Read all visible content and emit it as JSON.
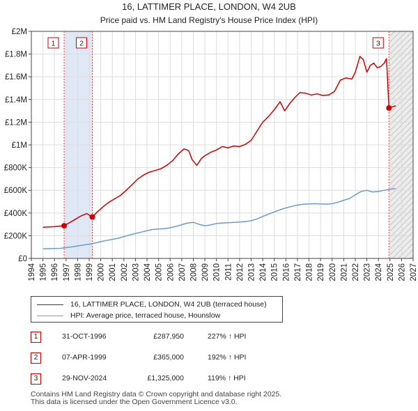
{
  "chart_data": {
    "type": "line",
    "title": "16, LATTIMER PLACE, LONDON, W4 2UB",
    "subtitle": "Price paid vs. HM Land Registry's House Price Index (HPI)",
    "xlim": [
      1994,
      2027
    ],
    "ylim": [
      0,
      2000000
    ],
    "x_ticks": [
      "1994",
      "1995",
      "1996",
      "1997",
      "1998",
      "1999",
      "2000",
      "2001",
      "2002",
      "2003",
      "2004",
      "2005",
      "2006",
      "2007",
      "2008",
      "2009",
      "2010",
      "2011",
      "2012",
      "2013",
      "2014",
      "2015",
      "2016",
      "2017",
      "2018",
      "2019",
      "2020",
      "2021",
      "2022",
      "2023",
      "2024",
      "2025",
      "2026",
      "2027"
    ],
    "y_ticks": [
      {
        "value": 0,
        "label": "£0"
      },
      {
        "value": 200000,
        "label": "£200K"
      },
      {
        "value": 400000,
        "label": "£400K"
      },
      {
        "value": 600000,
        "label": "£600K"
      },
      {
        "value": 800000,
        "label": "£800K"
      },
      {
        "value": 1000000,
        "label": "£1M"
      },
      {
        "value": 1200000,
        "label": "£1.2M"
      },
      {
        "value": 1400000,
        "label": "£1.4M"
      },
      {
        "value": 1600000,
        "label": "£1.6M"
      },
      {
        "value": 1800000,
        "label": "£1.8M"
      },
      {
        "value": 2000000,
        "label": "£2M"
      }
    ],
    "grid": true,
    "shaded_regions": [
      {
        "from": 1996.83,
        "to": 1999.27,
        "color": "#dde6f5"
      },
      {
        "from": 2025.0,
        "to": 2027.0,
        "color": "#e6e6e6",
        "hatched": true
      }
    ],
    "series": [
      {
        "name": "16, LATTIMER PLACE, LONDON, W4 2UB (terraced house)",
        "color": "#cc0000",
        "x": [
          1995.0,
          1995.5,
          1996.0,
          1996.5,
          1996.83,
          1997.3,
          1997.8,
          1998.3,
          1998.8,
          1999.27,
          1999.7,
          2000.2,
          2000.7,
          2001.2,
          2001.7,
          2002.2,
          2002.7,
          2003.2,
          2003.7,
          2004.2,
          2004.7,
          2005.2,
          2005.7,
          2006.2,
          2006.7,
          2007.2,
          2007.6,
          2007.9,
          2008.3,
          2008.7,
          2009.0,
          2009.5,
          2010.0,
          2010.5,
          2011.0,
          2011.5,
          2012.0,
          2012.5,
          2013.0,
          2013.5,
          2014.0,
          2014.5,
          2015.0,
          2015.5,
          2015.9,
          2016.3,
          2016.8,
          2017.2,
          2017.7,
          2018.2,
          2018.7,
          2019.2,
          2019.7,
          2020.2,
          2020.7,
          2021.2,
          2021.7,
          2022.0,
          2022.4,
          2022.7,
          2023.0,
          2023.3,
          2023.6,
          2023.9,
          2024.2,
          2024.5,
          2024.7,
          2024.91,
          2025.2,
          2025.5
        ],
        "values": [
          275000,
          278000,
          280000,
          285000,
          287950,
          315000,
          345000,
          375000,
          395000,
          365000,
          410000,
          455000,
          495000,
          525000,
          555000,
          600000,
          650000,
          700000,
          735000,
          760000,
          775000,
          790000,
          820000,
          860000,
          920000,
          965000,
          950000,
          870000,
          820000,
          880000,
          905000,
          935000,
          955000,
          985000,
          975000,
          990000,
          985000,
          1005000,
          1040000,
          1120000,
          1200000,
          1250000,
          1310000,
          1380000,
          1300000,
          1360000,
          1420000,
          1460000,
          1455000,
          1440000,
          1450000,
          1435000,
          1440000,
          1470000,
          1570000,
          1590000,
          1580000,
          1640000,
          1780000,
          1750000,
          1640000,
          1700000,
          1720000,
          1680000,
          1690000,
          1720000,
          1760000,
          1325000,
          1335000,
          1345000
        ]
      },
      {
        "name": "HPI: Average price, terraced house, Hounslow",
        "color": "#6a9bd1",
        "x": [
          1995.0,
          1995.5,
          1996.0,
          1996.5,
          1997.0,
          1997.5,
          1998.0,
          1998.5,
          1999.0,
          1999.5,
          2000.0,
          2000.5,
          2001.0,
          2001.5,
          2002.0,
          2002.5,
          2003.0,
          2003.5,
          2004.0,
          2004.5,
          2005.0,
          2005.5,
          2006.0,
          2006.5,
          2007.0,
          2007.5,
          2008.0,
          2008.5,
          2009.0,
          2009.5,
          2010.0,
          2010.5,
          2011.0,
          2011.5,
          2012.0,
          2012.5,
          2013.0,
          2013.5,
          2014.0,
          2014.5,
          2015.0,
          2015.5,
          2016.0,
          2016.5,
          2017.0,
          2017.5,
          2018.0,
          2018.5,
          2019.0,
          2019.5,
          2020.0,
          2020.5,
          2021.0,
          2021.5,
          2022.0,
          2022.5,
          2023.0,
          2023.5,
          2024.0,
          2024.5,
          2025.0,
          2025.5
        ],
        "values": [
          85000,
          86000,
          87000,
          89000,
          95000,
          102000,
          110000,
          118000,
          125000,
          135000,
          148000,
          158000,
          168000,
          178000,
          192000,
          207000,
          220000,
          232000,
          245000,
          255000,
          258000,
          263000,
          270000,
          282000,
          297000,
          312000,
          318000,
          300000,
          288000,
          295000,
          308000,
          312000,
          315000,
          318000,
          320000,
          325000,
          332000,
          348000,
          370000,
          390000,
          410000,
          428000,
          445000,
          458000,
          470000,
          478000,
          480000,
          482000,
          480000,
          478000,
          482000,
          495000,
          512000,
          528000,
          560000,
          590000,
          600000,
          585000,
          590000,
          600000,
          610000,
          615000
        ]
      }
    ],
    "markers": [
      {
        "label": "1",
        "x": 1996.83,
        "value": 287950
      },
      {
        "label": "2",
        "x": 1999.27,
        "value": 365000
      },
      {
        "label": "3",
        "x": 2024.91,
        "value": 1325000
      }
    ]
  },
  "legend": {
    "property_label": "16, LATTIMER PLACE, LONDON, W4 2UB (terraced house)",
    "hpi_label": "HPI: Average price, terraced house, Hounslow",
    "property_color": "#cc0000",
    "hpi_color": "#6a9bd1"
  },
  "transactions": [
    {
      "num": "1",
      "date": "31-OCT-1996",
      "price": "£287,950",
      "hpi": "227% ↑ HPI"
    },
    {
      "num": "2",
      "date": "07-APR-1999",
      "price": "£365,000",
      "hpi": "192% ↑ HPI"
    },
    {
      "num": "3",
      "date": "29-NOV-2024",
      "price": "£1,325,000",
      "hpi": "119% ↑ HPI"
    }
  ],
  "footer": {
    "line1": "Contains HM Land Registry data © Crown copyright and database right 2025.",
    "line2": "This data is licensed under the Open Government Licence v3.0."
  }
}
